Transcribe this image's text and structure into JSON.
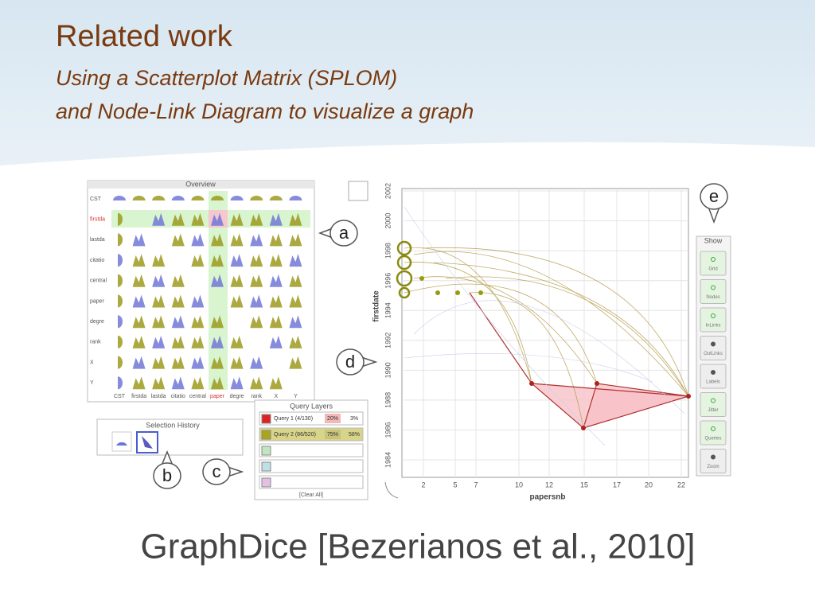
{
  "header": {
    "title": "Related work",
    "subtitle_lines": [
      "Using a Scatterplot Matrix (SPLOM)",
      "and Node-Link Diagram to visualize a graph"
    ]
  },
  "overview": {
    "title": "Overview",
    "row_labels": [
      "CST",
      "firstda",
      "lastda",
      "citatio",
      "central",
      "paper",
      "degre",
      "rank",
      "X",
      "Y"
    ],
    "column_labels": [
      "CST",
      "firstda",
      "lastda",
      "citatio",
      "central",
      "paper",
      "degre",
      "rank",
      "X",
      "Y"
    ]
  },
  "selection_history": {
    "title": "Selection History"
  },
  "query_layers": {
    "title": "Query Layers",
    "queries": [
      {
        "label": "Query 1 (4/130)",
        "share_a": "20%",
        "share_b": "3%"
      },
      {
        "label": "Query 2 (86/520)",
        "share_a": "75%",
        "share_b": "58%"
      }
    ],
    "clear": "[Clear All]"
  },
  "scatterplot": {
    "y_label": "firstdate",
    "x_label": "papersnb",
    "y_ticks": [
      1984,
      1986,
      1988,
      1990,
      1992,
      1994,
      1996,
      1998,
      2000,
      2002
    ],
    "x_ticks": [
      2,
      5,
      7,
      10,
      12,
      15,
      17,
      20,
      22
    ]
  },
  "show_panel": {
    "title": "Show",
    "buttons": [
      "Grid",
      "Nodes",
      "InLinks",
      "OutLinks",
      "Labels",
      "Jitter",
      "Queries",
      "Zoom"
    ]
  },
  "callouts": [
    "a",
    "b",
    "c",
    "d",
    "e"
  ],
  "caption": "GraphDice [Bezerianos et al., 2010]"
}
